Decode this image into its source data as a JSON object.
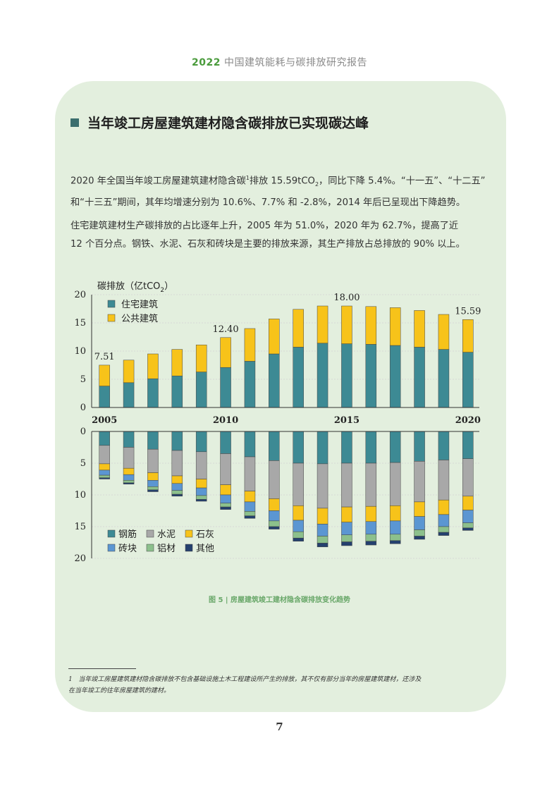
{
  "header": {
    "year": "2022",
    "title": " 中国建筑能耗与碳排放研究报告"
  },
  "section": {
    "title": "当年竣工房屋建筑建材隐含碳排放已实现碳达峰"
  },
  "paragraphs": {
    "p1_a": "2020 年全国当年竣工房屋建筑建材隐含碳",
    "p1_sup": "1",
    "p1_b": "排放 15.59tCO",
    "p1_sub": "2",
    "p1_c": "，同比下降 5.4%。“十一五”、“十二五”",
    "p1_line2": "和“十三五”期间，其年均增速分别为 10.6%、7.7% 和 -2.8%，2014 年后已呈现出下降趋势。",
    "p2_line1": "住宅建筑建材生产碳排放的占比逐年上升，2005 年为 51.0%，2020 年为 62.7%，提高了近",
    "p2_line2": "12 个百分点。钢铁、水泥、石灰和砖块是主要的排放来源，其生产排放占总排放的 90% 以上。"
  },
  "colors": {
    "residential": "#3d8a94",
    "public": "#f7c31a",
    "steel": "#3d8a94",
    "cement": "#a8a8a8",
    "lime": "#f7c31a",
    "brick": "#5b96d2",
    "aluminum": "#8cc08c",
    "other": "#24406e"
  },
  "chart_data": [
    {
      "type": "bar",
      "stacked": true,
      "ylabel": "碳排放（亿tCO",
      "ylabel_sub": "2",
      "ylabel_end": "）",
      "ylim": [
        0,
        20
      ],
      "yticks": [
        "0",
        "5",
        "10",
        "15",
        "20"
      ],
      "x": [
        2005,
        2006,
        2007,
        2008,
        2009,
        2010,
        2011,
        2012,
        2013,
        2014,
        2015,
        2016,
        2017,
        2018,
        2019,
        2020
      ],
      "xtick_labels": [
        "2005",
        "2010",
        "2015",
        "2020"
      ],
      "series": [
        {
          "name": "住宅建筑",
          "values": [
            3.8,
            4.4,
            5.1,
            5.6,
            6.3,
            7.1,
            8.2,
            9.5,
            10.7,
            11.4,
            11.3,
            11.2,
            11.0,
            10.7,
            10.3,
            9.8
          ]
        },
        {
          "name": "公共建筑",
          "values": [
            3.71,
            4.0,
            4.4,
            4.7,
            4.8,
            5.3,
            5.8,
            6.2,
            6.7,
            6.6,
            6.7,
            6.7,
            6.7,
            6.5,
            6.2,
            5.79
          ]
        }
      ],
      "annotations": [
        {
          "x": 2005,
          "text": "7.51"
        },
        {
          "x": 2010,
          "text": "12.40"
        },
        {
          "x": 2015,
          "text": "18.00"
        },
        {
          "x": 2020,
          "text": "15.59"
        }
      ]
    },
    {
      "type": "bar",
      "stacked": true,
      "inverted": true,
      "ylim": [
        0,
        20
      ],
      "yticks": [
        "0",
        "5",
        "10",
        "15",
        "20"
      ],
      "x": [
        2005,
        2006,
        2007,
        2008,
        2009,
        2010,
        2011,
        2012,
        2013,
        2014,
        2015,
        2016,
        2017,
        2018,
        2019,
        2020
      ],
      "series": [
        {
          "name": "钢筋",
          "values": [
            2.2,
            2.5,
            2.8,
            3.0,
            3.2,
            3.5,
            4.0,
            4.6,
            5.0,
            5.1,
            5.0,
            5.0,
            4.9,
            4.7,
            4.5,
            4.3
          ]
        },
        {
          "name": "水泥",
          "values": [
            2.9,
            3.3,
            3.7,
            4.0,
            4.3,
            4.9,
            5.4,
            6.0,
            6.7,
            7.0,
            6.9,
            6.8,
            6.8,
            6.4,
            6.3,
            5.9
          ]
        },
        {
          "name": "石灰",
          "values": [
            1.0,
            1.0,
            1.2,
            1.2,
            1.4,
            1.6,
            1.7,
            1.9,
            2.3,
            2.5,
            2.4,
            2.4,
            2.4,
            2.3,
            2.3,
            2.2
          ]
        },
        {
          "name": "砖块",
          "values": [
            0.8,
            0.9,
            1.0,
            1.1,
            1.2,
            1.3,
            1.5,
            1.6,
            1.8,
            1.9,
            2.0,
            2.0,
            2.1,
            2.1,
            1.9,
            2.0
          ]
        },
        {
          "name": "铝材",
          "values": [
            0.4,
            0.4,
            0.5,
            0.6,
            0.6,
            0.6,
            0.7,
            0.9,
            1.0,
            1.1,
            1.1,
            1.1,
            1.0,
            1.0,
            0.9,
            0.8
          ]
        },
        {
          "name": "其他",
          "values": [
            0.2,
            0.2,
            0.3,
            0.3,
            0.3,
            0.4,
            0.4,
            0.4,
            0.5,
            0.6,
            0.6,
            0.6,
            0.5,
            0.5,
            0.5,
            0.4
          ]
        }
      ]
    }
  ],
  "figure": {
    "caption": "图 5 | 房屋建筑竣工建材隐含碳排放变化趋势"
  },
  "footnote": {
    "number": "1",
    "text_line1": "当年竣工房屋建筑建材隐含碳排放不包含基础设施土木工程建设所产生的排放，其不仅有部分当年的房屋建筑建材，还涉及",
    "text_line2": "在当年竣工的往年房屋建筑的建材。"
  },
  "page": {
    "number": "7"
  }
}
